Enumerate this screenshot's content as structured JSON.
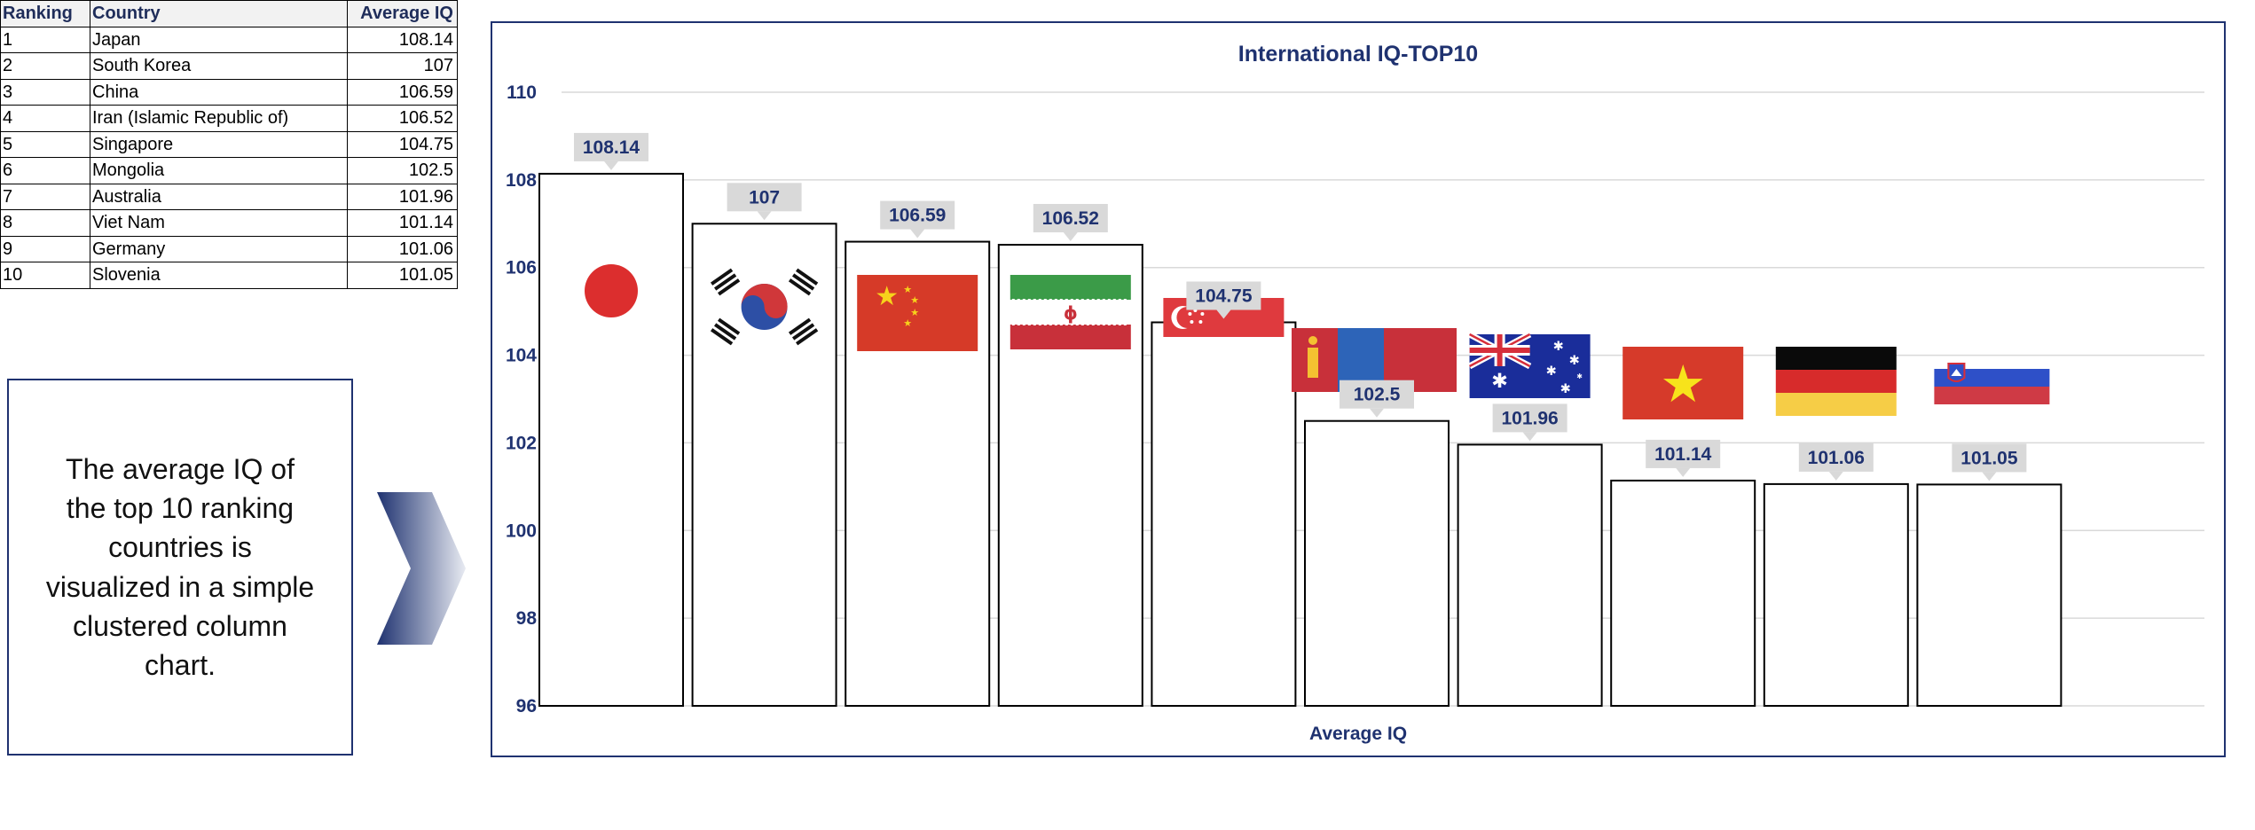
{
  "table": {
    "headers": [
      "Ranking",
      "Country",
      "Average IQ"
    ],
    "rows": [
      {
        "rank": "1",
        "country": "Japan",
        "iq": "108.14"
      },
      {
        "rank": "2",
        "country": "South Korea",
        "iq": "107"
      },
      {
        "rank": "3",
        "country": "China",
        "iq": "106.59"
      },
      {
        "rank": "4",
        "country": "Iran (Islamic Republic of)",
        "iq": "106.52"
      },
      {
        "rank": "5",
        "country": "Singapore",
        "iq": "104.75"
      },
      {
        "rank": "6",
        "country": "Mongolia",
        "iq": "102.5"
      },
      {
        "rank": "7",
        "country": "Australia",
        "iq": "101.96"
      },
      {
        "rank": "8",
        "country": "Viet Nam",
        "iq": "101.14"
      },
      {
        "rank": "9",
        "country": "Germany",
        "iq": "101.06"
      },
      {
        "rank": "10",
        "country": "Slovenia",
        "iq": "101.05"
      }
    ]
  },
  "description": "The average IQ of the top 10 ranking countries is visualized in a simple clustered column chart.",
  "colors": {
    "accent": "#1f3270",
    "gridline": "#d9d9d9",
    "bar_fill": "#ffffff",
    "bar_stroke": "#000000",
    "label_bg": "#d9d9d9"
  },
  "chart_data": {
    "type": "bar",
    "title": "International IQ-TOP10",
    "xlabel": "Average IQ",
    "ylabel": "",
    "ylim": [
      96,
      110
    ],
    "yticks": [
      96,
      98,
      100,
      102,
      104,
      106,
      108,
      110
    ],
    "grid": true,
    "legend": "none",
    "categories": [
      "Japan",
      "South Korea",
      "China",
      "Iran (Islamic Republic of)",
      "Singapore",
      "Mongolia",
      "Australia",
      "Viet Nam",
      "Germany",
      "Slovenia"
    ],
    "values": [
      108.14,
      107,
      106.59,
      106.52,
      104.75,
      102.5,
      101.96,
      101.14,
      101.06,
      101.05
    ],
    "data_labels": [
      "108.14",
      "107",
      "106.59",
      "106.52",
      "104.75",
      "102.5",
      "101.96",
      "101.14",
      "101.06",
      "101.05"
    ],
    "bar_images": [
      "japan-flag",
      "south-korea-flag",
      "china-flag",
      "iran-flag",
      "singapore-flag",
      "mongolia-flag",
      "australia-flag",
      "vietnam-flag",
      "germany-flag",
      "slovenia-flag"
    ]
  }
}
